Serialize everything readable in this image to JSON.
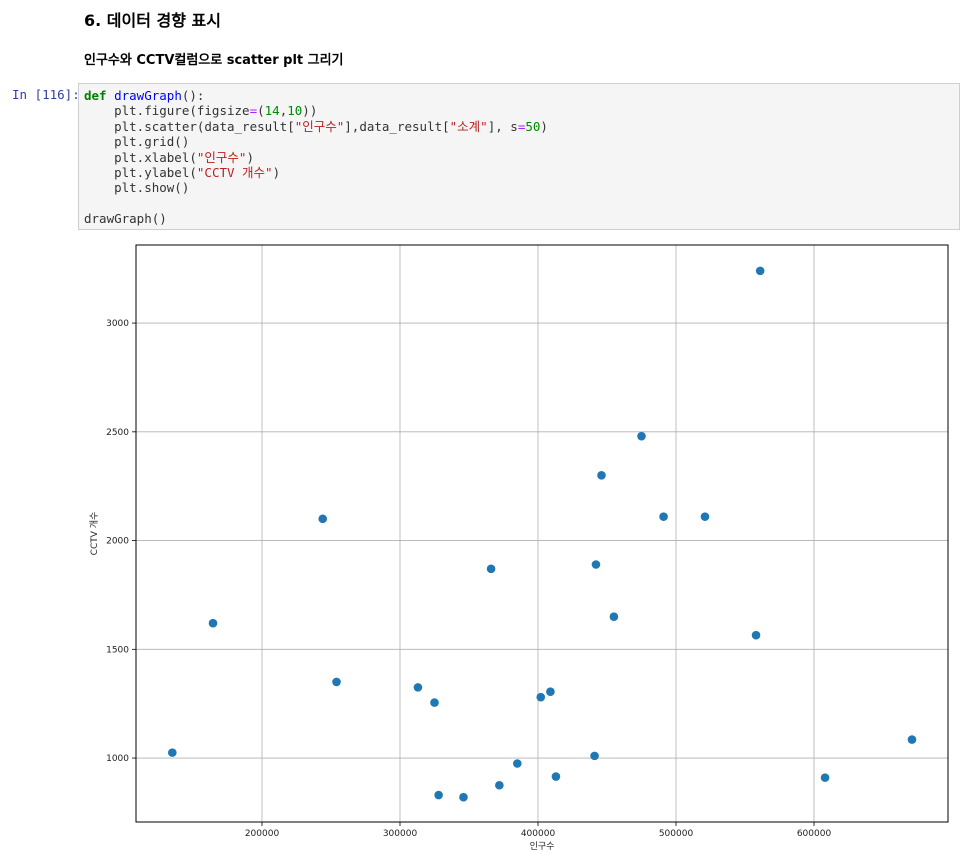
{
  "header": {
    "title": "6. 데이터 경향 표시",
    "subtitle": "인구수와 CCTV컬럼으로 scatter plt 그리기"
  },
  "cell": {
    "prompt": "In [116]:",
    "lines": [
      [
        {
          "text": "def",
          "color": "#008000"
        },
        {
          "text": " ",
          "color": "#333333"
        },
        {
          "text": "drawGraph",
          "color": "#0000ff"
        },
        {
          "text": "():",
          "color": "#333333"
        }
      ],
      [
        {
          "text": "    plt.figure(figsize",
          "color": "#333333"
        },
        {
          "text": "=",
          "color": "#aa22ff"
        },
        {
          "text": "(",
          "color": "#333333"
        },
        {
          "text": "14",
          "color": "#008800"
        },
        {
          "text": ",",
          "color": "#333333"
        },
        {
          "text": "10",
          "color": "#008800"
        },
        {
          "text": "))",
          "color": "#333333"
        }
      ],
      [
        {
          "text": "    plt.scatter(data_result[",
          "color": "#333333"
        },
        {
          "text": "\"인구수\"",
          "color": "#ba2121"
        },
        {
          "text": "],data_result[",
          "color": "#333333"
        },
        {
          "text": "\"소계\"",
          "color": "#ba2121"
        },
        {
          "text": "], s",
          "color": "#333333"
        },
        {
          "text": "=",
          "color": "#aa22ff"
        },
        {
          "text": "50",
          "color": "#008800"
        },
        {
          "text": ")",
          "color": "#333333"
        }
      ],
      [
        {
          "text": "    plt.grid()",
          "color": "#333333"
        }
      ],
      [
        {
          "text": "    plt.xlabel(",
          "color": "#333333"
        },
        {
          "text": "\"인구수\"",
          "color": "#ba2121"
        },
        {
          "text": ")",
          "color": "#333333"
        }
      ],
      [
        {
          "text": "    plt.ylabel(",
          "color": "#333333"
        },
        {
          "text": "\"CCTV 개수\"",
          "color": "#ba2121"
        },
        {
          "text": ")",
          "color": "#333333"
        }
      ],
      [
        {
          "text": "    plt.show()",
          "color": "#333333"
        }
      ],
      [],
      [
        {
          "text": "drawGraph()",
          "color": "#333333"
        }
      ]
    ]
  },
  "chart_data": {
    "type": "scatter",
    "xlabel": "인구수",
    "ylabel": "CCTV 개수",
    "color": "#1f77b4",
    "grid": true,
    "x": [
      561000,
      475000,
      446000,
      491000,
      521000,
      244000,
      366000,
      442000,
      164500,
      455000,
      558000,
      254000,
      313000,
      325000,
      402000,
      409000,
      135000,
      671000,
      441000,
      385000,
      413000,
      608000,
      372000,
      328000,
      346000
    ],
    "values": [
      3240,
      2480,
      2300,
      2110,
      2110,
      2100,
      1870,
      1890,
      1620,
      1650,
      1565,
      1350,
      1325,
      1255,
      1280,
      1305,
      1025,
      1085,
      1010,
      975,
      915,
      910,
      875,
      830,
      820
    ],
    "xlim": [
      108700,
      697100
    ],
    "ylim": [
      706,
      3359
    ],
    "xticks": [
      200000,
      300000,
      400000,
      500000,
      600000
    ],
    "yticks": [
      1000,
      1500,
      2000,
      2500,
      3000
    ]
  }
}
